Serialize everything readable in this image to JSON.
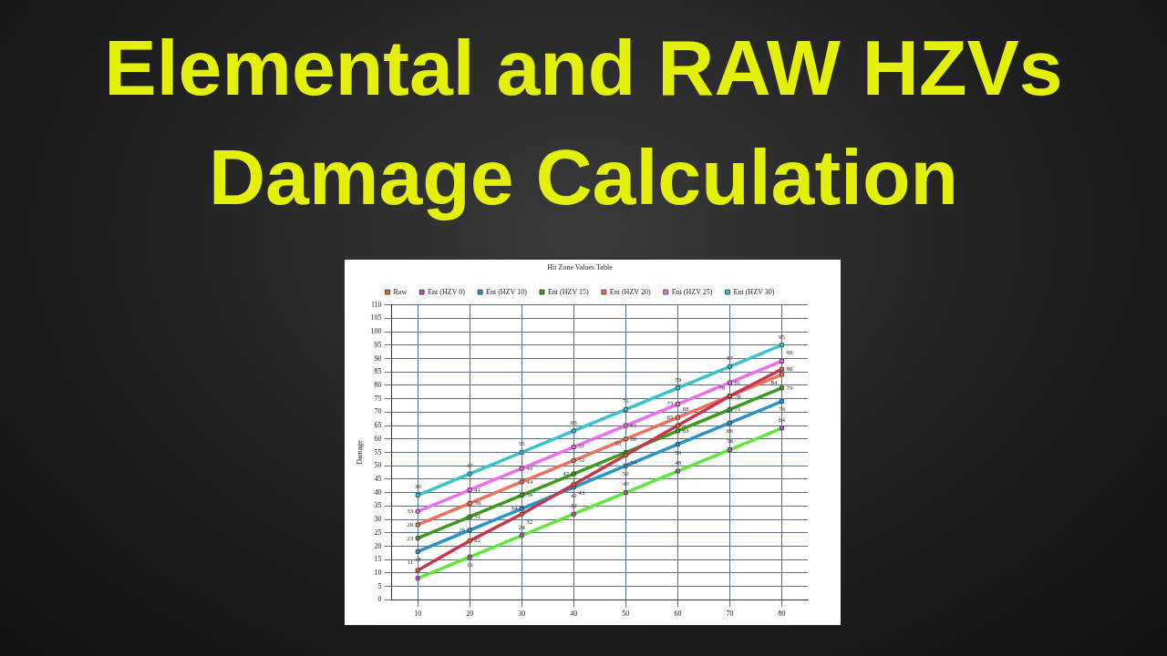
{
  "chart_data": {
    "type": "line",
    "title": "Elemental and RAW HZVs Damage Calculation",
    "subtitle": "Hit Zone Values Table",
    "ylabel": "Damage",
    "categories": [
      "10",
      "20",
      "30",
      "40",
      "50",
      "60",
      "70",
      "80"
    ],
    "series": [
      {
        "name": "Raw",
        "color": "#c8364e",
        "colors": [
          "#e8602c",
          "#e8602c",
          "#e8602c",
          "#e8602c",
          "#e8602c",
          "#e8602c",
          "#e8602c",
          "#e8602c"
        ],
        "values": [
          11,
          22,
          32,
          43,
          54,
          65,
          76,
          86
        ]
      },
      {
        "name": "Ent (HZV 0)",
        "color": "#5ee83a",
        "colors": [
          "#cc44cc",
          "#cc44cc",
          "#cc44cc",
          "#cc44cc",
          "#cc44cc",
          "#cc44cc",
          "#cc44cc",
          "#cc44cc"
        ],
        "values": [
          8,
          16,
          24,
          32,
          40,
          48,
          56,
          64
        ],
        "value_labels": [
          null,
          "16",
          "24",
          "32",
          "40",
          "48",
          "56",
          "64"
        ]
      },
      {
        "name": "Ent (HZV 10)",
        "color": "#2a93c8",
        "values": [
          18,
          26,
          34,
          42,
          50,
          58,
          66,
          74
        ]
      },
      {
        "name": "Ent (HZV 15)",
        "color": "#3c9a1c",
        "values": [
          23,
          31,
          39,
          47,
          55,
          63,
          71,
          79
        ]
      },
      {
        "name": "Ent (HZV 20)",
        "color": "#f0705e",
        "values": [
          28,
          36,
          44,
          52,
          60,
          68,
          76,
          84
        ]
      },
      {
        "name": "Ent (HZV 25)",
        "color": "#ee6ef0",
        "values": [
          33,
          41,
          49,
          57,
          65,
          73,
          81,
          89
        ]
      },
      {
        "name": "Ent (HZV 30)",
        "color": "#36c4cc",
        "values": [
          39,
          47,
          55,
          63,
          71,
          79,
          87,
          95
        ]
      }
    ],
    "ylim": [
      0,
      110
    ],
    "yticks": [
      0,
      5,
      10,
      15,
      20,
      25,
      30,
      35,
      40,
      45,
      50,
      55,
      60,
      65,
      70,
      75,
      80,
      85,
      90,
      95,
      100,
      105,
      110
    ],
    "grid": true,
    "legend": "top",
    "marker": "square",
    "data_labels": true
  }
}
